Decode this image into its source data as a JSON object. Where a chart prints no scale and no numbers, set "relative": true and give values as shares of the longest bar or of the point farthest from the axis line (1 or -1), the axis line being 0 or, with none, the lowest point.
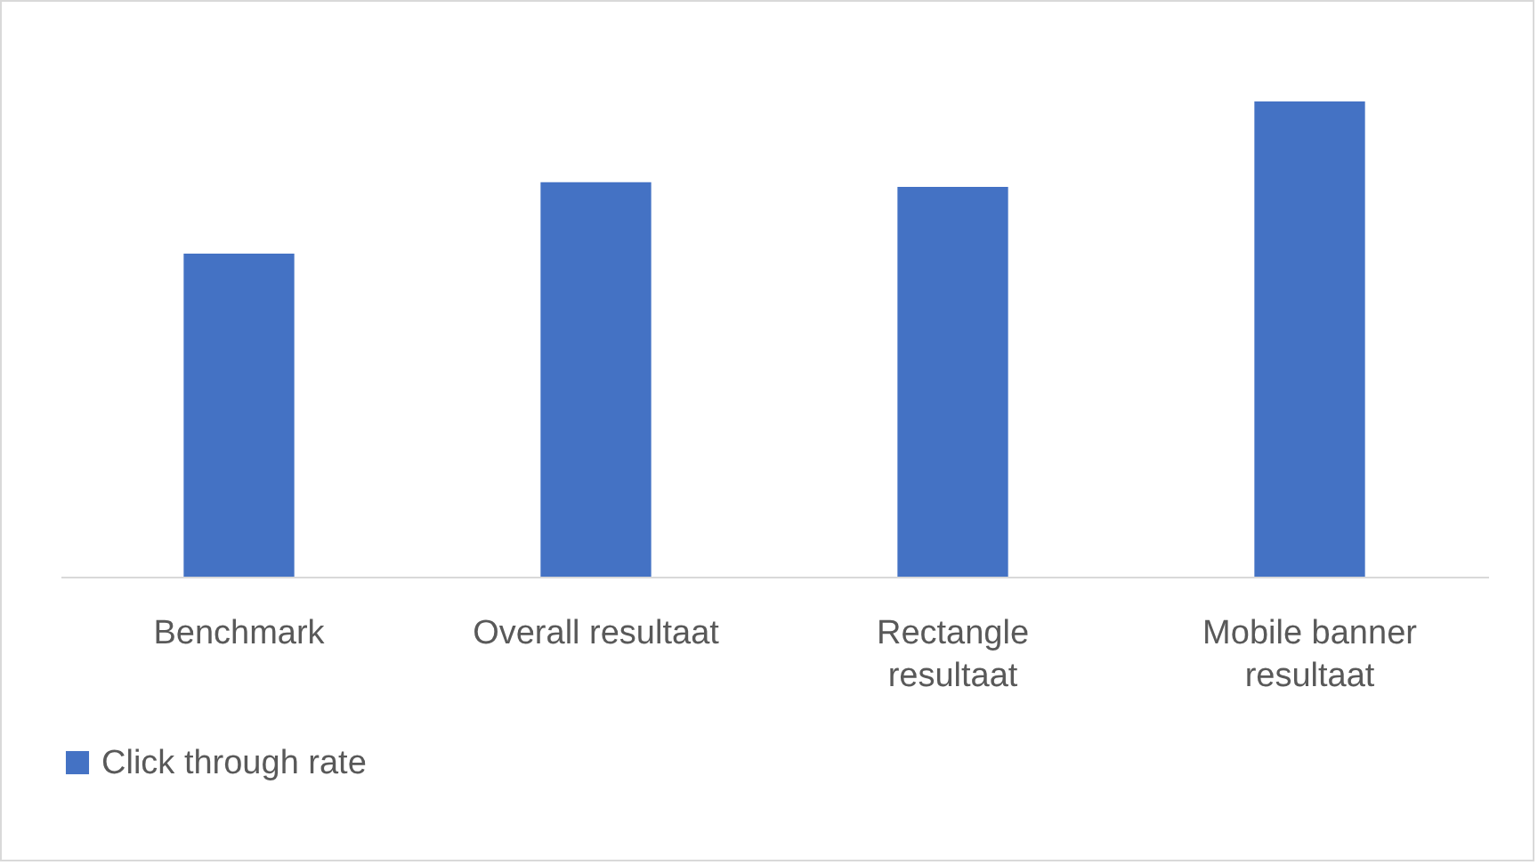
{
  "chart_data": {
    "type": "bar",
    "relative": true,
    "categories": [
      "Benchmark",
      "Overall resultaat",
      "Rectangle resultaat",
      "Mobile banner resultaat"
    ],
    "series": [
      {
        "name": "Click through rate",
        "color": "#4472c4",
        "values": [
          0.68,
          0.83,
          0.82,
          1
        ]
      }
    ],
    "legend": "bottom"
  }
}
